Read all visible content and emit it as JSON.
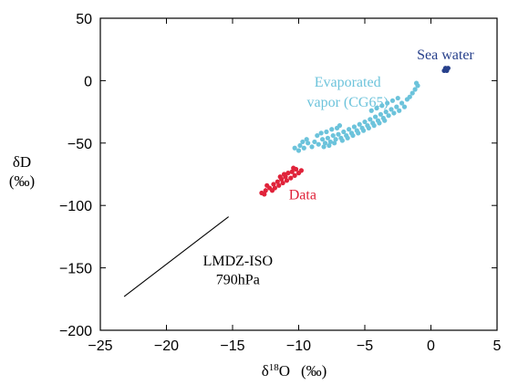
{
  "chart_data": {
    "type": "scatter",
    "title": "",
    "xlabel": {
      "symbol": "δ",
      "sup": "18",
      "rest": "O",
      "unit": "(‰)"
    },
    "ylabel": {
      "line1": "δD",
      "line2": "(‰)"
    },
    "xlim": [
      -25,
      5
    ],
    "ylim": [
      -200,
      50
    ],
    "xticks": [
      "−25",
      "−20",
      "−15",
      "−10",
      "−5",
      "0",
      "5"
    ],
    "xtick_values": [
      -25,
      -20,
      -15,
      -10,
      -5,
      0,
      5
    ],
    "yticks": [
      "50",
      "0",
      "−50",
      "−100",
      "−150",
      "−200"
    ],
    "ytick_values": [
      50,
      0,
      -50,
      -100,
      -150,
      -200
    ],
    "grid": false,
    "series": [
      {
        "kind": "cloud",
        "color": "#6cc3db",
        "points": [
          [
            -9.9,
            -52
          ],
          [
            -9.6,
            -54
          ],
          [
            -9.3,
            -50
          ],
          [
            -9.0,
            -53
          ],
          [
            -8.8,
            -49
          ],
          [
            -8.5,
            -51
          ],
          [
            -8.2,
            -47
          ],
          [
            -8.0,
            -50
          ],
          [
            -7.8,
            -46
          ],
          [
            -7.6,
            -49
          ],
          [
            -7.4,
            -44
          ],
          [
            -7.2,
            -47
          ],
          [
            -7.0,
            -43
          ],
          [
            -6.8,
            -46
          ],
          [
            -6.6,
            -41
          ],
          [
            -6.4,
            -44
          ],
          [
            -6.2,
            -39
          ],
          [
            -6.0,
            -42
          ],
          [
            -5.8,
            -37
          ],
          [
            -5.6,
            -40
          ],
          [
            -5.4,
            -35
          ],
          [
            -5.2,
            -38
          ],
          [
            -5.0,
            -33
          ],
          [
            -4.8,
            -36
          ],
          [
            -4.6,
            -31
          ],
          [
            -4.4,
            -34
          ],
          [
            -4.2,
            -29
          ],
          [
            -4.0,
            -32
          ],
          [
            -3.8,
            -27
          ],
          [
            -3.6,
            -30
          ],
          [
            -3.4,
            -25
          ],
          [
            -3.2,
            -28
          ],
          [
            -3.0,
            -23
          ],
          [
            -2.8,
            -26
          ],
          [
            -2.6,
            -21
          ],
          [
            -2.4,
            -24
          ],
          [
            -2.2,
            -18
          ],
          [
            -2.0,
            -21
          ],
          [
            -1.8,
            -15
          ],
          [
            -1.6,
            -13
          ],
          [
            -1.4,
            -10
          ],
          [
            -1.2,
            -7
          ],
          [
            -1.0,
            -4
          ],
          [
            -1.1,
            -2
          ],
          [
            -8.6,
            -44
          ],
          [
            -8.3,
            -42
          ],
          [
            -7.9,
            -41
          ],
          [
            -7.5,
            -39
          ],
          [
            -7.1,
            -38
          ],
          [
            -6.9,
            -36
          ],
          [
            -4.5,
            -24
          ],
          [
            -4.1,
            -22
          ],
          [
            -3.7,
            -20
          ],
          [
            -3.3,
            -18
          ],
          [
            -2.9,
            -16
          ],
          [
            -2.5,
            -14
          ],
          [
            -8.1,
            -53
          ],
          [
            -7.7,
            -52
          ],
          [
            -7.3,
            -50
          ],
          [
            -6.7,
            -48
          ],
          [
            -6.3,
            -46
          ],
          [
            -5.9,
            -44
          ],
          [
            -5.5,
            -42
          ],
          [
            -5.1,
            -40
          ],
          [
            -4.7,
            -38
          ],
          [
            -4.3,
            -36
          ],
          [
            -3.9,
            -34
          ],
          [
            -3.5,
            -32
          ],
          [
            -9.4,
            -47
          ],
          [
            -10.3,
            -54
          ],
          [
            -10.0,
            -56
          ],
          [
            -9.7,
            -49
          ]
        ]
      },
      {
        "kind": "cloud",
        "color": "#e0233a",
        "points": [
          [
            -12.8,
            -90
          ],
          [
            -12.5,
            -88
          ],
          [
            -12.2,
            -86
          ],
          [
            -12.4,
            -84
          ],
          [
            -11.9,
            -83
          ],
          [
            -11.6,
            -81
          ],
          [
            -11.3,
            -79
          ],
          [
            -11.0,
            -77
          ],
          [
            -11.8,
            -86
          ],
          [
            -11.5,
            -84
          ],
          [
            -11.2,
            -82
          ],
          [
            -10.9,
            -80
          ],
          [
            -10.6,
            -78
          ],
          [
            -10.3,
            -76
          ],
          [
            -10.0,
            -74
          ],
          [
            -9.8,
            -72
          ],
          [
            -10.5,
            -73
          ],
          [
            -10.2,
            -71
          ],
          [
            -11.1,
            -75
          ],
          [
            -12.0,
            -88
          ],
          [
            -12.6,
            -91
          ],
          [
            -11.4,
            -77
          ],
          [
            -10.8,
            -74
          ],
          [
            -10.4,
            -70
          ]
        ]
      },
      {
        "kind": "cloud",
        "color": "#27408b",
        "points": [
          [
            1.0,
            8
          ],
          [
            1.1,
            9
          ],
          [
            1.2,
            9
          ],
          [
            1.3,
            10
          ],
          [
            1.2,
            8
          ],
          [
            1.1,
            10
          ]
        ]
      },
      {
        "kind": "line",
        "color": "#000000",
        "points": [
          [
            -23.2,
            -173
          ],
          [
            -15.3,
            -109
          ]
        ]
      }
    ],
    "annotations": [
      {
        "text": "Evaporated",
        "x": -6.3,
        "y": -5,
        "color": "#6cc3db"
      },
      {
        "text": "vapor (CG65)",
        "x": -6.3,
        "y": -21,
        "color": "#6cc3db"
      },
      {
        "text": "Sea water",
        "x": 1.1,
        "y": 17,
        "color": "#27408b"
      },
      {
        "text": "Data",
        "x": -9.7,
        "y": -95,
        "color": "#e0233a"
      },
      {
        "text": "LMDZ-ISO",
        "x": -14.6,
        "y": -148,
        "color": "#000000"
      },
      {
        "text": "790hPa",
        "x": -14.6,
        "y": -163,
        "color": "#000000"
      }
    ]
  }
}
